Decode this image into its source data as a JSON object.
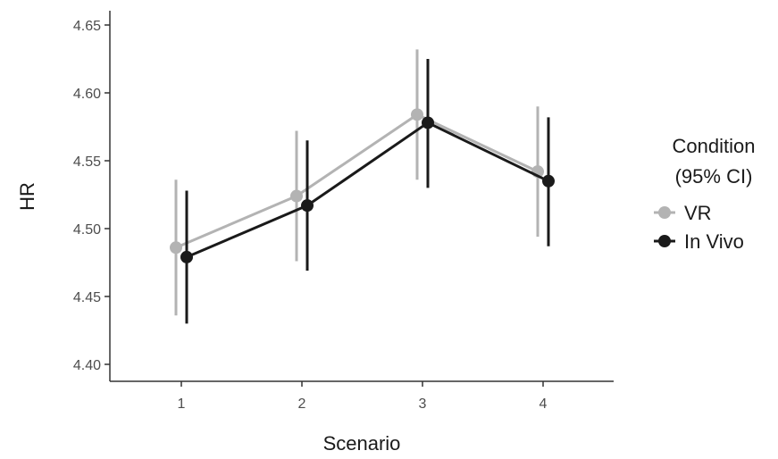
{
  "chart_data": {
    "type": "line",
    "xlabel": "Scenario",
    "ylabel": "HR",
    "categories": [
      "1",
      "2",
      "3",
      "4"
    ],
    "ylim": [
      4.395,
      4.665
    ],
    "yticks": [
      "4.40",
      "4.45",
      "4.50",
      "4.55",
      "4.60",
      "4.65"
    ],
    "grid": false,
    "legend": {
      "title_line1": "Condition",
      "title_line2": "(95% CI)",
      "placement": "right"
    },
    "series": [
      {
        "name": "VR",
        "color": "#b3b3b3",
        "values": [
          4.486,
          4.524,
          4.584,
          4.542
        ],
        "ci_low": [
          4.436,
          4.476,
          4.536,
          4.494
        ],
        "ci_high": [
          4.536,
          4.572,
          4.632,
          4.59
        ]
      },
      {
        "name": "In Vivo",
        "color": "#1a1a1a",
        "values": [
          4.479,
          4.517,
          4.578,
          4.535
        ],
        "ci_low": [
          4.43,
          4.469,
          4.53,
          4.487
        ],
        "ci_high": [
          4.528,
          4.565,
          4.625,
          4.582
        ]
      }
    ]
  }
}
